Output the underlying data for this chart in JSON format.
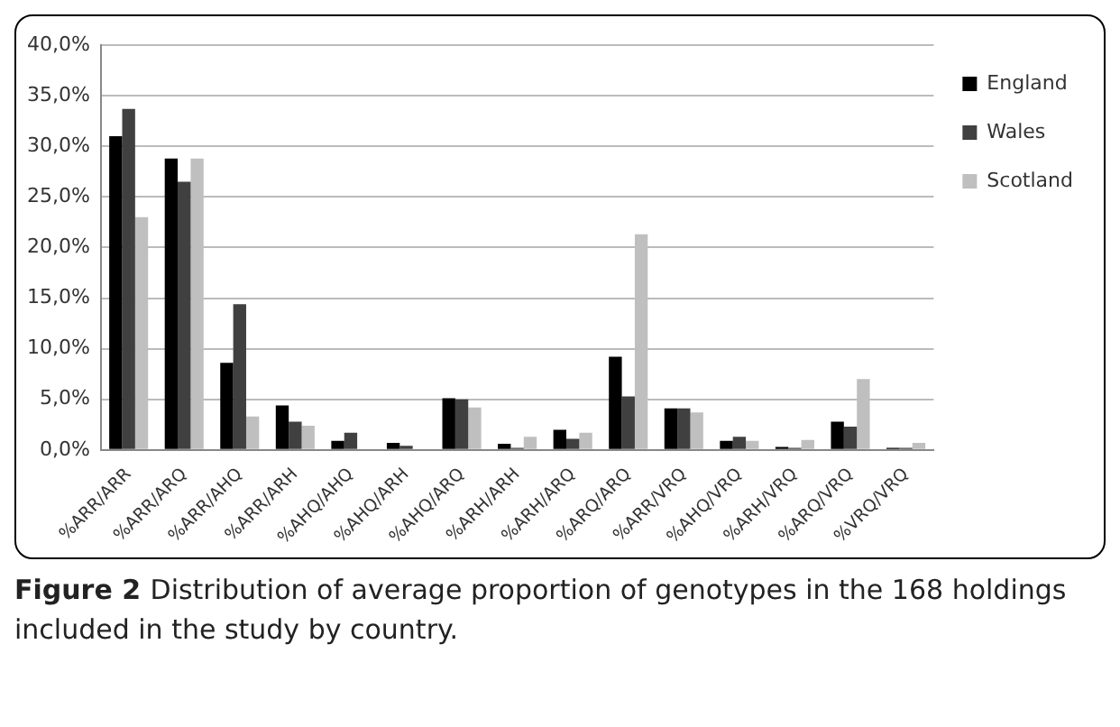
{
  "chart_data": {
    "type": "bar",
    "categories": [
      "%ARR/ARR",
      "%ARR/ARQ",
      "%ARR/AHQ",
      "%ARR/ARH",
      "%AHQ/AHQ",
      "%AHQ/ARH",
      "%AHQ/ARQ",
      "%ARH/ARH",
      "%ARH/ARQ",
      "%ARQ/ARQ",
      "%ARR/VRQ",
      "%AHQ/VRQ",
      "%ARH/VRQ",
      "%ARQ/VRQ",
      "%VRQ/VRQ"
    ],
    "series": [
      {
        "name": "England",
        "color": "#000000",
        "values": [
          31.0,
          28.8,
          8.6,
          4.4,
          0.9,
          0.7,
          5.1,
          0.6,
          2.0,
          9.2,
          4.1,
          0.9,
          0.3,
          2.8,
          0.2
        ]
      },
      {
        "name": "Wales",
        "color": "#404040",
        "values": [
          33.7,
          26.5,
          14.4,
          2.8,
          1.7,
          0.4,
          5.0,
          0.2,
          1.1,
          5.3,
          4.1,
          1.3,
          0.2,
          2.3,
          0.2
        ]
      },
      {
        "name": "Scotland",
        "color": "#bfbfbf",
        "values": [
          23.0,
          28.8,
          3.3,
          2.4,
          null,
          null,
          4.2,
          1.3,
          1.7,
          21.3,
          3.7,
          0.9,
          1.0,
          7.0,
          0.7
        ]
      }
    ],
    "ylim": [
      0,
      40
    ],
    "yticks": [
      {
        "value": 0,
        "label": "0,0%"
      },
      {
        "value": 5,
        "label": "5,0%"
      },
      {
        "value": 10,
        "label": "10,0%"
      },
      {
        "value": 15,
        "label": "15,0%"
      },
      {
        "value": 20,
        "label": "20,0%"
      },
      {
        "value": 25,
        "label": "25,0%"
      },
      {
        "value": 30,
        "label": "30,0%"
      },
      {
        "value": 35,
        "label": "35,0%"
      },
      {
        "value": 40,
        "label": "40,0%"
      }
    ],
    "grid": "y",
    "legend": "top right",
    "annotations": [
      "Figure 2",
      "Distribution of average proportion of genotypes in the 168 holdings included in the study by country."
    ]
  }
}
